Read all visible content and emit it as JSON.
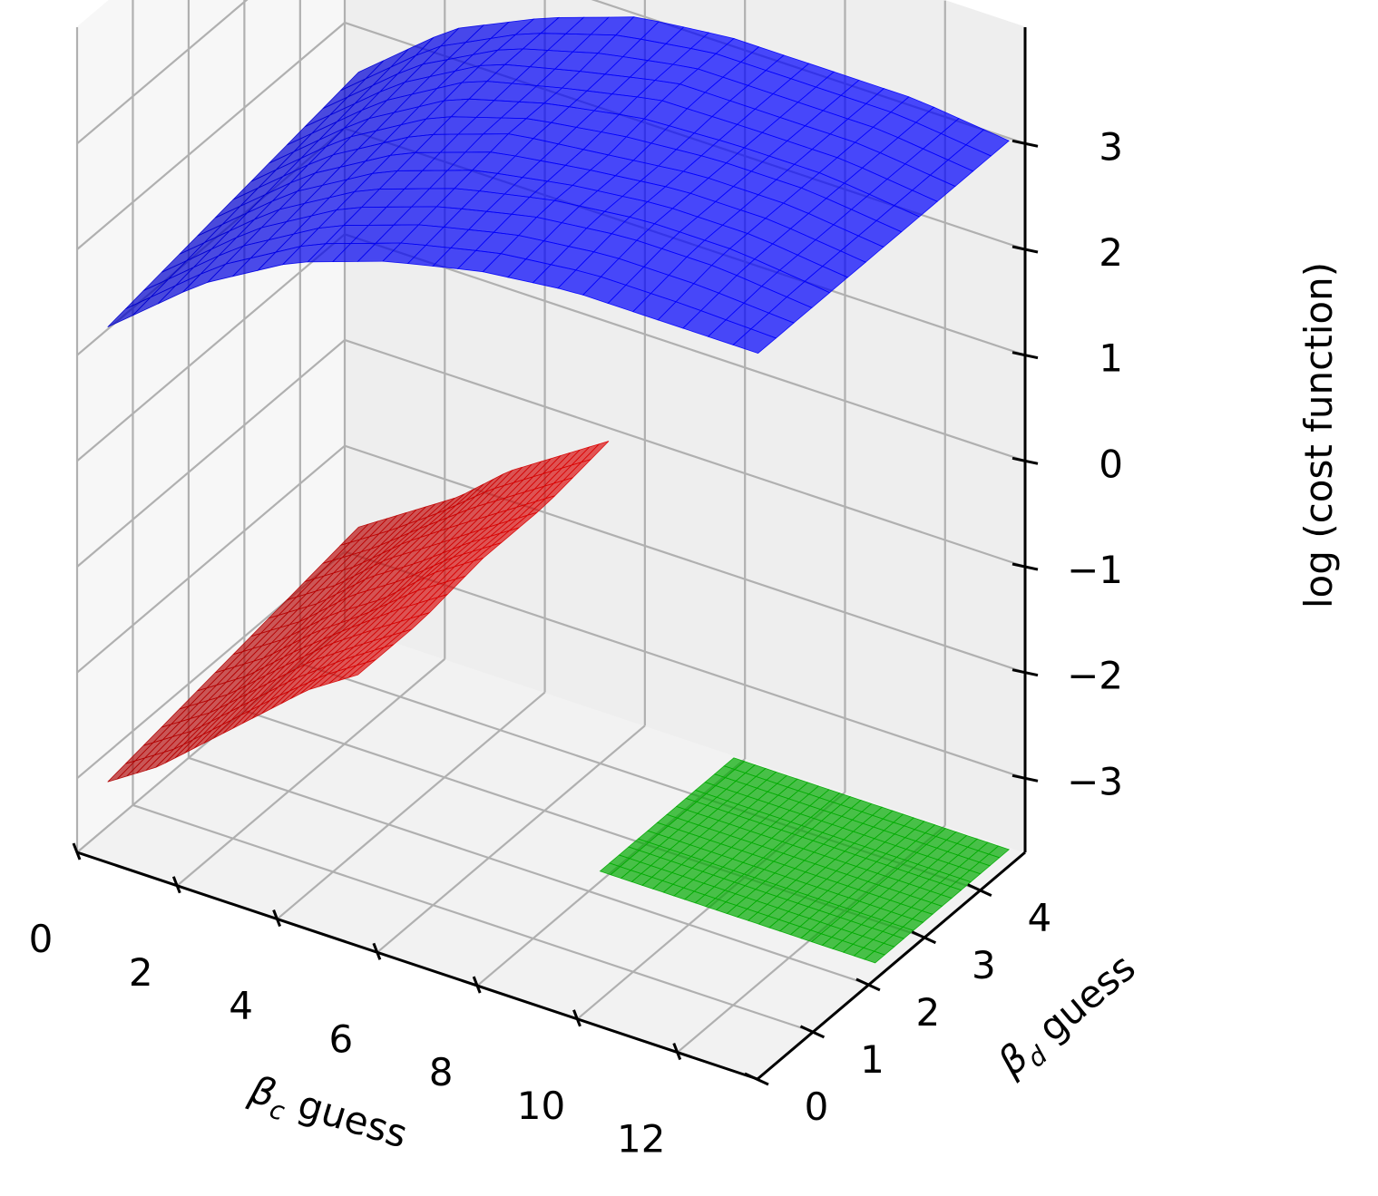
{
  "chart_data": {
    "type": "surface3d",
    "xlabel": "β_c guess",
    "ylabel": "β_d guess",
    "zlabel": "log (cost function)",
    "xlabel_parts": {
      "base": "β",
      "sub": "c",
      "rest": " guess"
    },
    "ylabel_parts": {
      "base": "β",
      "sub": "d",
      "rest": " guess"
    },
    "xlim": [
      0,
      13.6
    ],
    "ylim": [
      0,
      4.8
    ],
    "zlim": [
      -3.7,
      4.1
    ],
    "x_ticks": [
      "0",
      "2",
      "4",
      "6",
      "8",
      "10",
      "12"
    ],
    "y_ticks": [
      "0",
      "1",
      "2",
      "3",
      "4"
    ],
    "z_ticks": [
      "−3",
      "−2",
      "−1",
      "0",
      "1",
      "2",
      "3"
    ],
    "grid": true,
    "series": [
      {
        "color": "#0000ff",
        "opacity": 0.7,
        "x_range": [
          0.5,
          13.5
        ],
        "y_range": [
          0.1,
          4.6
        ],
        "z_samples": [
          [
            1.3,
            2.0,
            2.5,
            2.8,
            3.0,
            3.1,
            3.1,
            3.1
          ],
          [
            1.4,
            2.1,
            2.6,
            2.9,
            3.1,
            3.2,
            3.2,
            3.1
          ],
          [
            1.5,
            2.2,
            2.7,
            3.0,
            3.1,
            3.2,
            3.2,
            3.1
          ],
          [
            1.6,
            2.3,
            2.8,
            3.0,
            3.2,
            3.2,
            3.2,
            3.1
          ],
          [
            1.7,
            2.4,
            2.8,
            3.1,
            3.2,
            3.2,
            3.2,
            3.1
          ]
        ]
      },
      {
        "color": "#dd0000",
        "opacity": 0.65,
        "x_range": [
          0.5,
          5.5
        ],
        "y_range": [
          0.1,
          4.6
        ],
        "z_samples": [
          [
            -3.0,
            -2.7,
            -2.3,
            -1.9,
            -1.5,
            -1.2
          ],
          [
            -2.9,
            -2.6,
            -2.2,
            -1.8,
            -1.5,
            -1.2
          ],
          [
            -2.8,
            -2.5,
            -2.1,
            -1.8,
            -1.4,
            -1.1
          ],
          [
            -2.7,
            -2.4,
            -2.0,
            -1.7,
            -1.4,
            -1.1
          ],
          [
            -2.6,
            -2.3,
            -2.0,
            -1.6,
            -1.3,
            -1.0
          ]
        ]
      },
      {
        "color": "#00c000",
        "opacity": 0.7,
        "x_range": [
          8.0,
          13.5
        ],
        "y_range": [
          2.2,
          4.6
        ],
        "z_samples": [
          [
            -3.6,
            -3.6,
            -3.6,
            -3.6
          ],
          [
            -3.6,
            -3.6,
            -3.6,
            -3.6
          ],
          [
            -3.6,
            -3.6,
            -3.6,
            -3.6
          ]
        ]
      }
    ]
  }
}
